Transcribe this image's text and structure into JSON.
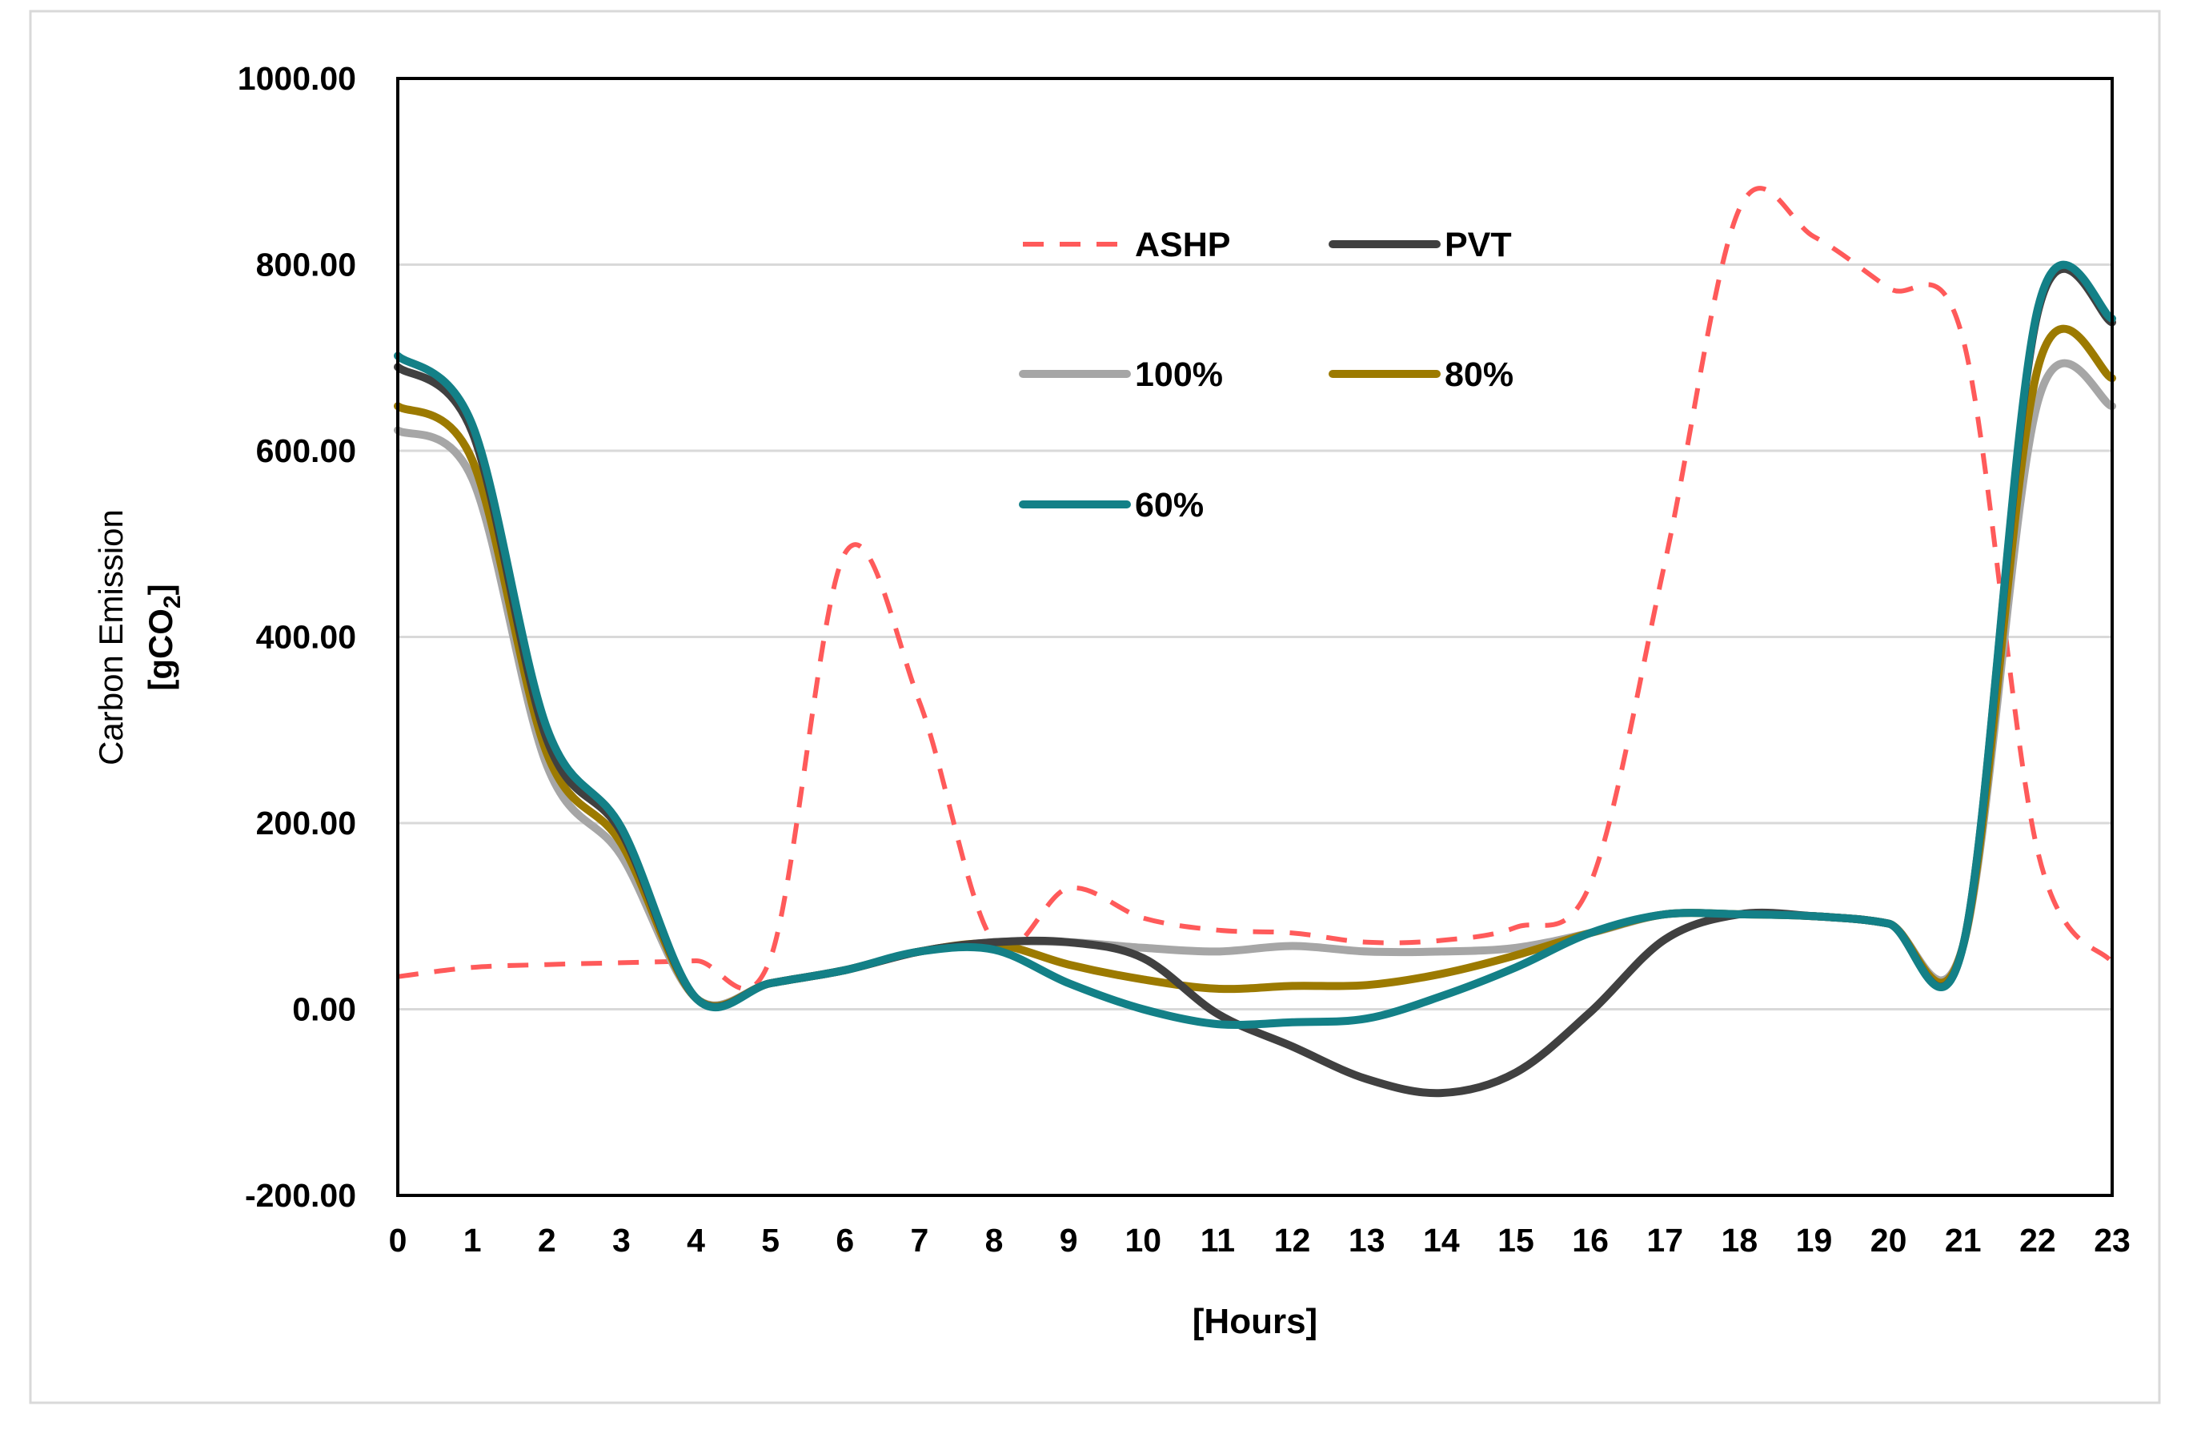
{
  "chart_data": {
    "type": "line",
    "title": "",
    "xlabel": "[Hours]",
    "ylabel": {
      "line1": "Carbon Emission",
      "line2_prefix": "[gCO",
      "line2_sub": "2",
      "line2_suffix": "]"
    },
    "x": [
      0,
      1,
      2,
      3,
      4,
      5,
      6,
      7,
      8,
      9,
      10,
      11,
      12,
      13,
      14,
      15,
      16,
      17,
      18,
      19,
      20,
      21,
      22,
      23
    ],
    "xlim": [
      0,
      23
    ],
    "ylim": [
      -200,
      1000
    ],
    "yticks": [
      -200,
      0,
      200,
      400,
      600,
      800,
      1000
    ],
    "ytick_labels": [
      "-200.00",
      "0.00",
      "200.00",
      "400.00",
      "600.00",
      "800.00",
      "1000.00"
    ],
    "xtick_labels": [
      "0",
      "1",
      "2",
      "3",
      "4",
      "5",
      "6",
      "7",
      "8",
      "9",
      "10",
      "11",
      "12",
      "13",
      "14",
      "15",
      "16",
      "17",
      "18",
      "19",
      "20",
      "21",
      "22",
      "23"
    ],
    "grid": true,
    "legend_position": "top-center",
    "series": [
      {
        "name": "ASHP",
        "color": "#ff5a5a",
        "dash": true,
        "values": [
          35,
          45,
          48,
          50,
          52,
          55,
          490,
          330,
          72,
          130,
          98,
          85,
          82,
          72,
          74,
          88,
          135,
          480,
          860,
          830,
          775,
          720,
          170,
          50
        ]
      },
      {
        "name": "PVT",
        "color": "#404040",
        "dash": false,
        "values": [
          690,
          620,
          290,
          190,
          12,
          28,
          42,
          62,
          72,
          72,
          55,
          -5,
          -40,
          -75,
          -90,
          -68,
          -3,
          75,
          102,
          100,
          92,
          68,
          748,
          738
        ]
      },
      {
        "name": "100%",
        "color": "#a6a6a6",
        "dash": false,
        "values": [
          622,
          570,
          262,
          165,
          12,
          28,
          42,
          62,
          72,
          72,
          66,
          62,
          68,
          62,
          62,
          66,
          82,
          102,
          102,
          100,
          92,
          68,
          652,
          648
        ]
      },
      {
        "name": "80%",
        "color": "#9c7a00",
        "dash": false,
        "values": [
          648,
          590,
          275,
          178,
          12,
          28,
          42,
          62,
          70,
          48,
          32,
          22,
          25,
          26,
          38,
          58,
          82,
          102,
          102,
          100,
          92,
          68,
          688,
          678
        ]
      },
      {
        "name": "60%",
        "color": "#138087",
        "dash": false,
        "values": [
          702,
          628,
          302,
          195,
          12,
          28,
          42,
          62,
          64,
          28,
          0,
          -16,
          -14,
          -10,
          14,
          45,
          82,
          102,
          102,
          100,
          92,
          68,
          752,
          742
        ]
      }
    ]
  }
}
